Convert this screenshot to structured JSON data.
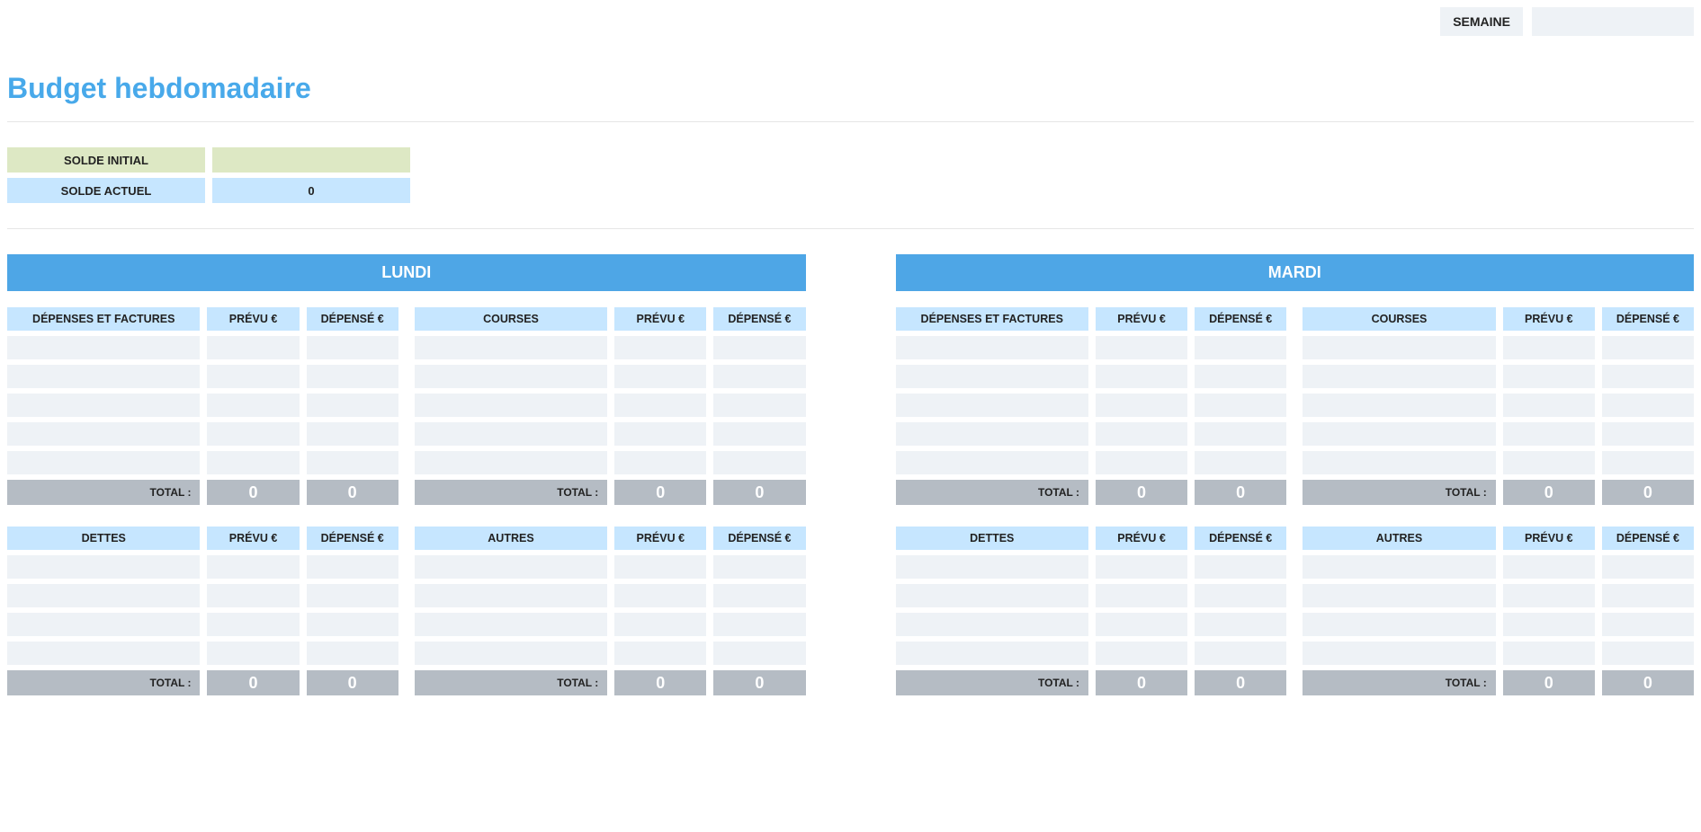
{
  "topbar": {
    "week_label": "SEMAINE",
    "week_value": ""
  },
  "title": "Budget hebdomadaire",
  "balances": {
    "initial": {
      "label": "SOLDE INITIAL",
      "value": ""
    },
    "current": {
      "label": "SOLDE ACTUEL",
      "value": "0"
    }
  },
  "columns": {
    "expenses": "DÉPENSES ET FACTURES",
    "planned": "PRÉVU €",
    "spent": "DÉPENSÉ €",
    "groceries": "COURSES",
    "debts": "DETTES",
    "other": "AUTRES",
    "total": "TOTAL :"
  },
  "row_count": 5,
  "debt_row_count": 4,
  "days": [
    {
      "name": "LUNDI",
      "sections": {
        "expenses": {
          "total_planned": "0",
          "total_spent": "0"
        },
        "groceries": {
          "total_planned": "0",
          "total_spent": "0"
        },
        "debts": {
          "total_planned": "0",
          "total_spent": "0"
        },
        "other": {
          "total_planned": "0",
          "total_spent": "0"
        }
      }
    },
    {
      "name": "MARDI",
      "sections": {
        "expenses": {
          "total_planned": "0",
          "total_spent": "0"
        },
        "groceries": {
          "total_planned": "0",
          "total_spent": "0"
        },
        "debts": {
          "total_planned": "0",
          "total_spent": "0"
        },
        "other": {
          "total_planned": "0",
          "total_spent": "0"
        }
      }
    }
  ],
  "colors": {
    "accent": "#4ea6e6",
    "title": "#48a9ea",
    "header_cell": "#c6e6ff",
    "empty_cell": "#eef2f6",
    "total_bg": "#b5bcc4",
    "olive": "#dde8c4"
  }
}
